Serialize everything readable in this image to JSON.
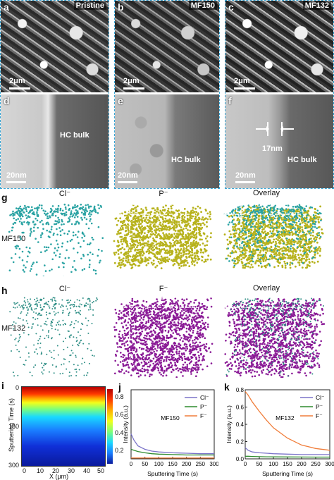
{
  "panels_top": {
    "a": {
      "letter": "a",
      "sample": "Pristine",
      "scale": "2μm"
    },
    "b": {
      "letter": "b",
      "sample": "MF150",
      "scale": "2μm"
    },
    "c": {
      "letter": "c",
      "sample": "MF132",
      "scale": "2μm"
    },
    "d": {
      "letter": "d",
      "bulk": "HC bulk",
      "scale": "20nm"
    },
    "e": {
      "letter": "e",
      "bulk": "HC bulk",
      "scale": "20nm"
    },
    "f": {
      "letter": "f",
      "bulk": "HC bulk",
      "scale": "20nm",
      "thickness": "17nm"
    }
  },
  "tof_g": {
    "letter": "g",
    "sample": "MF150",
    "cols": [
      "Cl⁻",
      "P⁻",
      "Overlay"
    ],
    "colors": {
      "cl": "#2aa3a3",
      "p": "#b7b21c"
    }
  },
  "tof_h": {
    "letter": "h",
    "sample": "MF132",
    "cols": [
      "Cl⁻",
      "F⁻",
      "Overlay"
    ],
    "colors": {
      "cl": "#2f8f86",
      "f": "#8a1a96"
    }
  },
  "panel_i": {
    "letter": "i",
    "ylabel": "Sputtering Time (s)",
    "xlabel": "X (μm)",
    "yticks": [
      "0",
      "150",
      "300"
    ],
    "xticks": [
      "0",
      "10",
      "20",
      "30",
      "40",
      "50"
    ],
    "cbticks": [
      "0.8",
      "0.6",
      "0.4",
      "0.2"
    ]
  },
  "chart_data": [
    {
      "type": "line",
      "panel": "j",
      "sample": "MF150",
      "xlabel": "Sputtering Time (s)",
      "ylabel": "Intensity (a.u.)",
      "xlim": [
        0,
        300
      ],
      "ylim": [
        0,
        0.8
      ],
      "xticks": [
        0,
        50,
        100,
        150,
        200,
        250,
        300
      ],
      "x": [
        0,
        10,
        25,
        50,
        75,
        100,
        150,
        200,
        250,
        300
      ],
      "series": [
        {
          "name": "Cl⁻",
          "color": "#7b74c9",
          "values": [
            0.29,
            0.22,
            0.15,
            0.11,
            0.09,
            0.08,
            0.07,
            0.065,
            0.06,
            0.06
          ]
        },
        {
          "name": "P⁻",
          "color": "#2e8b2e",
          "values": [
            0.11,
            0.1,
            0.085,
            0.07,
            0.06,
            0.055,
            0.05,
            0.045,
            0.045,
            0.045
          ]
        },
        {
          "name": "F⁻",
          "color": "#f07d3a",
          "values": [
            0.01,
            0.01,
            0.01,
            0.01,
            0.01,
            0.01,
            0.01,
            0.01,
            0.01,
            0.01
          ]
        }
      ]
    },
    {
      "type": "line",
      "panel": "k",
      "sample": "MF132",
      "xlabel": "Sputtering Time (s)",
      "ylabel": "Intensity (a.u.)",
      "xlim": [
        0,
        300
      ],
      "ylim": [
        0,
        0.8
      ],
      "yticks": [
        0.0,
        0.2,
        0.4,
        0.6,
        0.8
      ],
      "xticks": [
        0,
        50,
        100,
        150,
        200,
        250,
        300
      ],
      "x": [
        0,
        10,
        25,
        50,
        75,
        100,
        150,
        200,
        250,
        300
      ],
      "series": [
        {
          "name": "Cl⁻",
          "color": "#7b74c9",
          "values": [
            0.13,
            0.1,
            0.08,
            0.07,
            0.065,
            0.06,
            0.055,
            0.05,
            0.05,
            0.05
          ]
        },
        {
          "name": "P⁻",
          "color": "#2e8b2e",
          "values": [
            0.03,
            0.03,
            0.028,
            0.025,
            0.024,
            0.023,
            0.022,
            0.021,
            0.02,
            0.02
          ]
        },
        {
          "name": "F⁻",
          "color": "#f07d3a",
          "values": [
            0.78,
            0.74,
            0.66,
            0.55,
            0.45,
            0.36,
            0.24,
            0.16,
            0.12,
            0.1
          ]
        }
      ]
    }
  ]
}
